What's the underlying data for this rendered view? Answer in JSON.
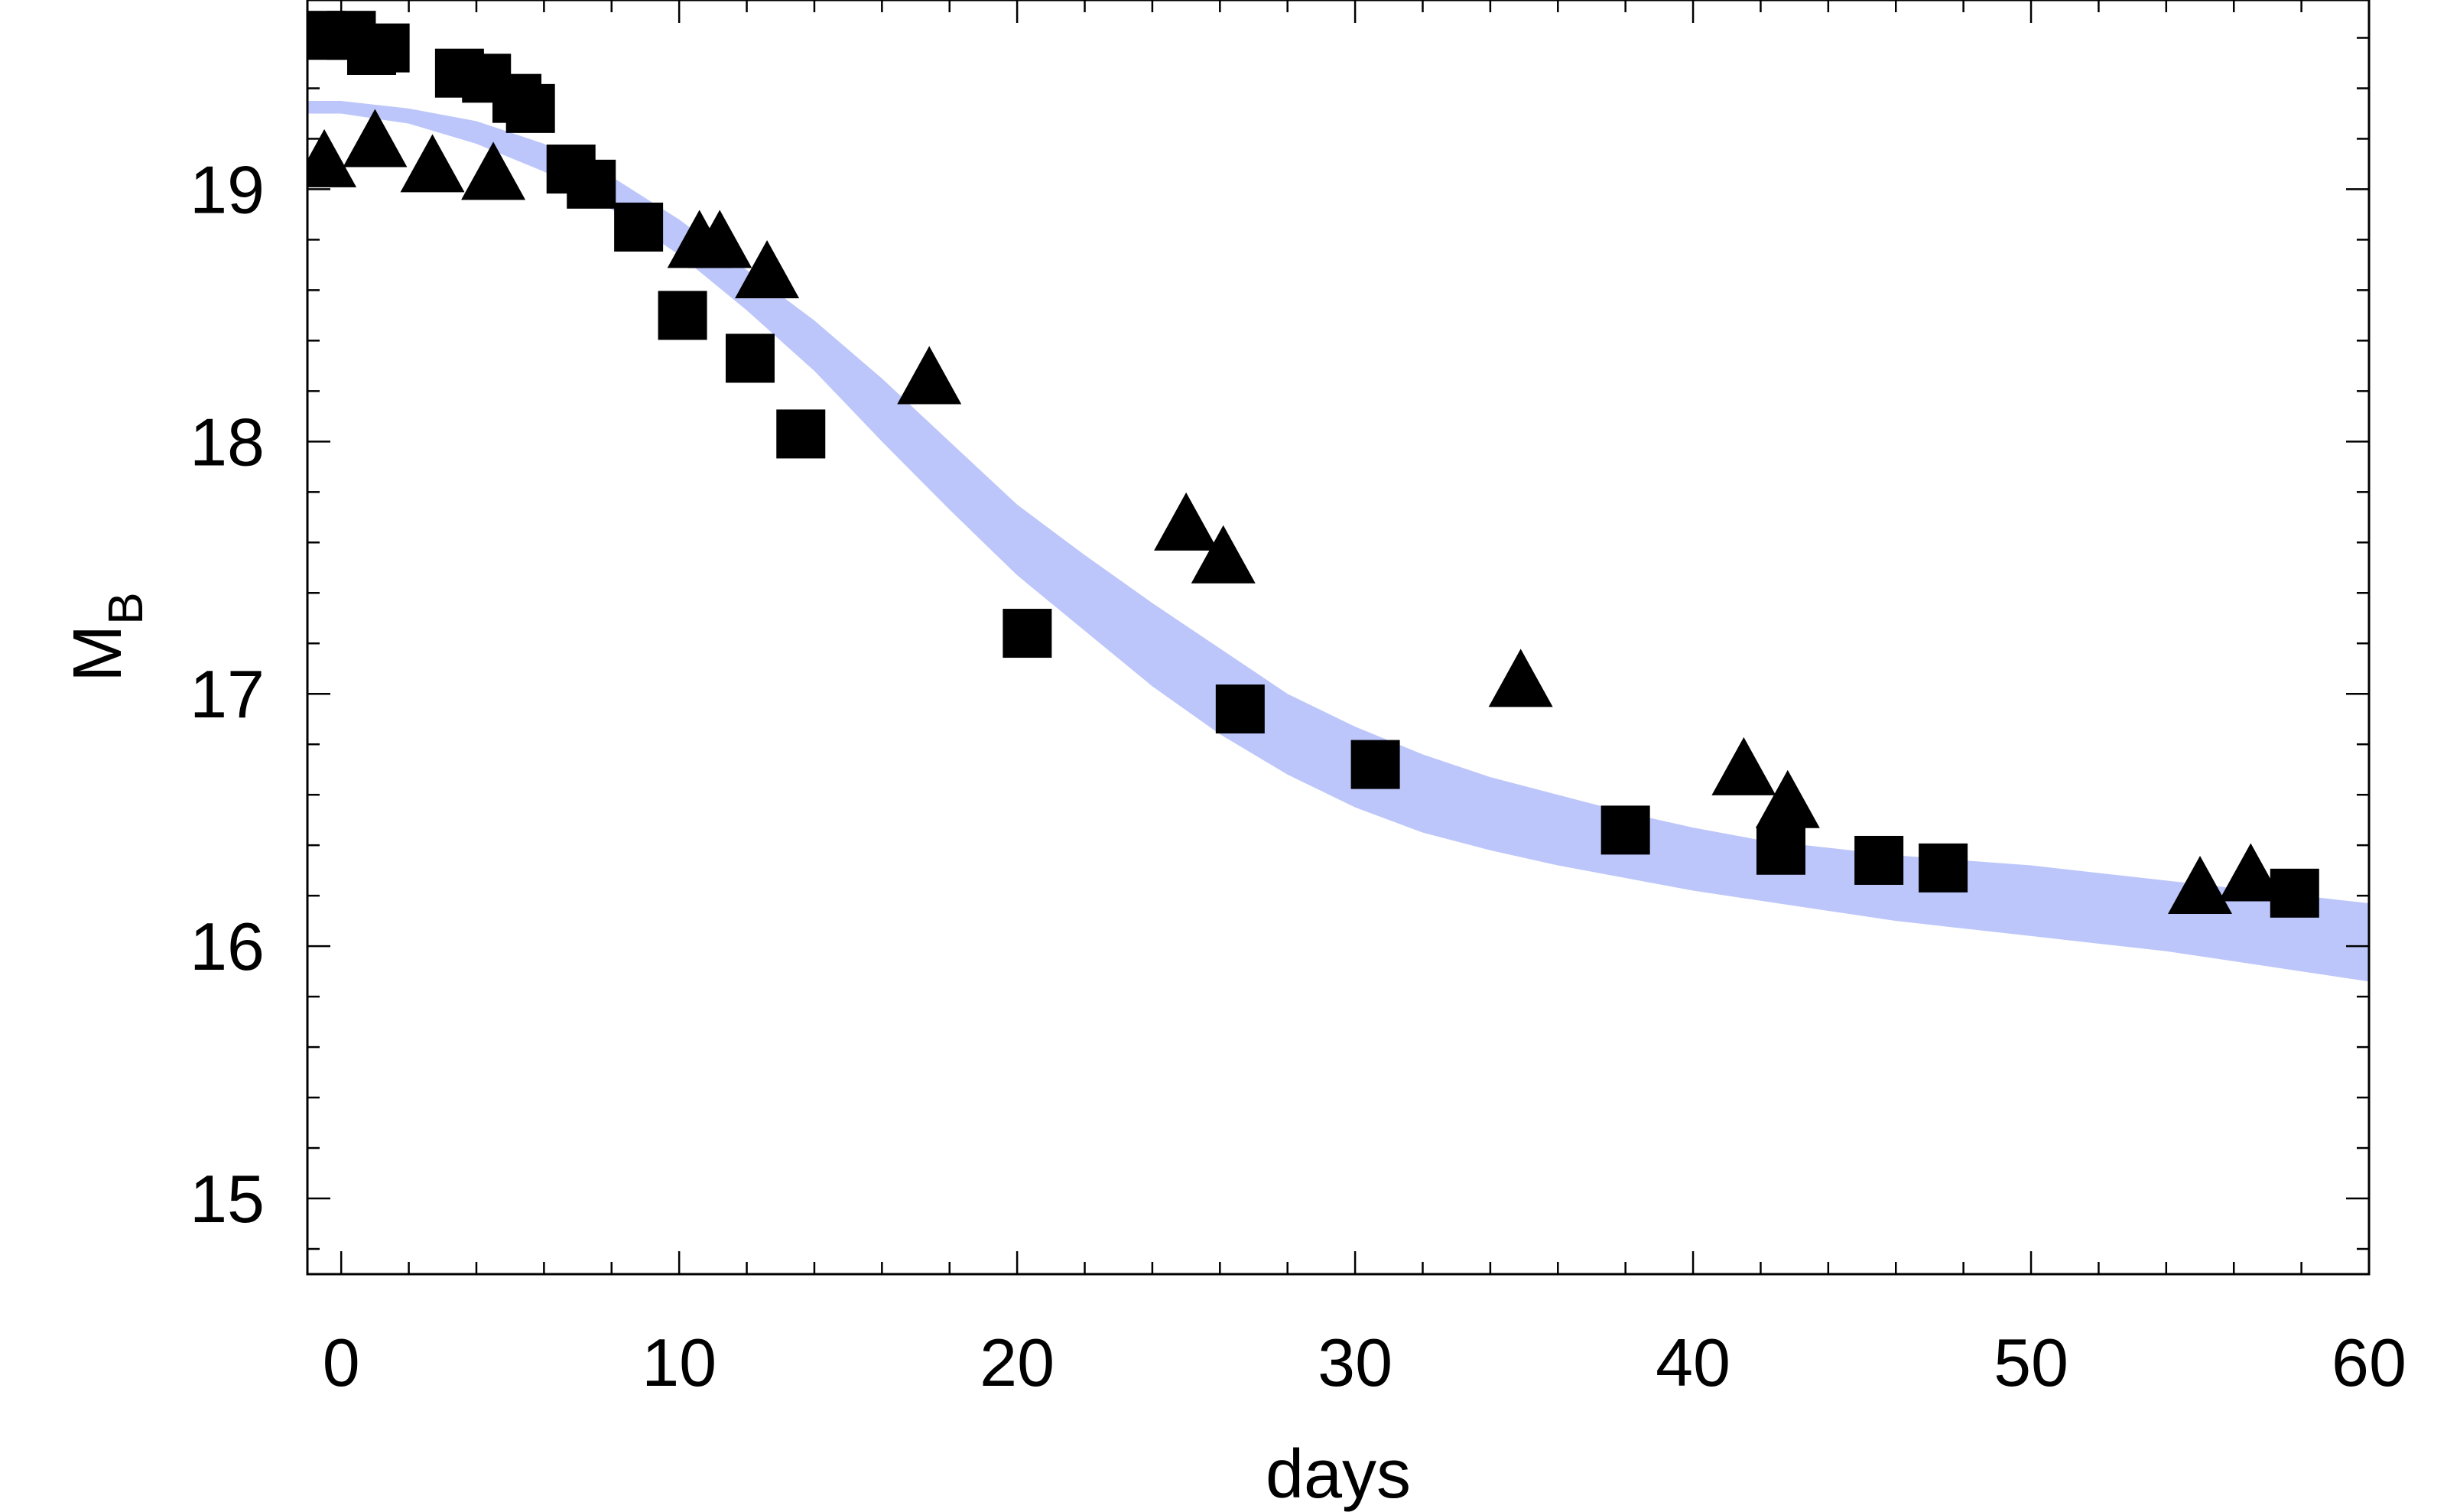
{
  "chart_data": {
    "type": "scatter",
    "title": "",
    "xlabel": "days",
    "ylabel_main": "M",
    "ylabel_sub": "B",
    "xlim": [
      -1,
      60
    ],
    "ylim": [
      14.7,
      19.75
    ],
    "xticks": [
      0,
      10,
      20,
      30,
      40,
      50,
      60
    ],
    "xtick_labels": [
      "0",
      "10",
      "20",
      "30",
      "40",
      "50",
      "60"
    ],
    "yticks": [
      15,
      16,
      17,
      18,
      19
    ],
    "ytick_labels": [
      "15",
      "16",
      "17",
      "18",
      "19"
    ],
    "colors": {
      "band": "#bcc6fa",
      "markers": "#000000",
      "axis": "#000000"
    },
    "band": {
      "name": "model",
      "x": [
        -1,
        0,
        2,
        4,
        6,
        8,
        10,
        12,
        14,
        16,
        18,
        20,
        22,
        24,
        26,
        28,
        30,
        32,
        34,
        36,
        38,
        40,
        42,
        44,
        46,
        48,
        50,
        52,
        54,
        56,
        58,
        60
      ],
      "upper": [
        19.35,
        19.35,
        19.32,
        19.27,
        19.18,
        19.05,
        18.88,
        18.68,
        18.48,
        18.25,
        18.0,
        17.75,
        17.55,
        17.36,
        17.18,
        17.0,
        16.87,
        16.76,
        16.67,
        16.6,
        16.53,
        16.47,
        16.42,
        16.39,
        16.36,
        16.34,
        16.32,
        16.29,
        16.26,
        16.23,
        16.2,
        16.17
      ],
      "lower": [
        19.3,
        19.3,
        19.26,
        19.18,
        19.07,
        18.92,
        18.74,
        18.52,
        18.28,
        18.0,
        17.73,
        17.47,
        17.25,
        17.03,
        16.84,
        16.68,
        16.55,
        16.45,
        16.38,
        16.32,
        16.27,
        16.22,
        16.18,
        16.14,
        16.1,
        16.07,
        16.04,
        16.01,
        15.98,
        15.94,
        15.9,
        15.86
      ]
    },
    "series": [
      {
        "name": "squares",
        "marker": "square",
        "x": [
          -0.6,
          0.3,
          0.9,
          1.3,
          3.5,
          4.3,
          5.2,
          5.6,
          6.8,
          7.4,
          8.8,
          10.1,
          12.1,
          13.6,
          20.3,
          26.6,
          30.6,
          38.0,
          42.6,
          45.5,
          47.4,
          57.8
        ],
        "y": [
          19.61,
          19.61,
          19.55,
          19.56,
          19.46,
          19.44,
          19.36,
          19.32,
          19.08,
          19.02,
          18.85,
          18.5,
          18.33,
          18.03,
          17.24,
          16.94,
          16.72,
          16.46,
          16.38,
          16.34,
          16.31,
          16.21
        ]
      },
      {
        "name": "triangles",
        "marker": "triangle",
        "x": [
          -0.5,
          1.0,
          2.7,
          4.5,
          10.6,
          11.2,
          12.6,
          17.4,
          25.0,
          26.1,
          34.9,
          41.5,
          42.8,
          55.0,
          56.5
        ],
        "y": [
          19.1,
          19.18,
          19.08,
          19.05,
          18.78,
          18.78,
          18.66,
          18.24,
          17.66,
          17.53,
          17.04,
          16.69,
          16.56,
          16.22,
          16.27
        ]
      }
    ]
  }
}
